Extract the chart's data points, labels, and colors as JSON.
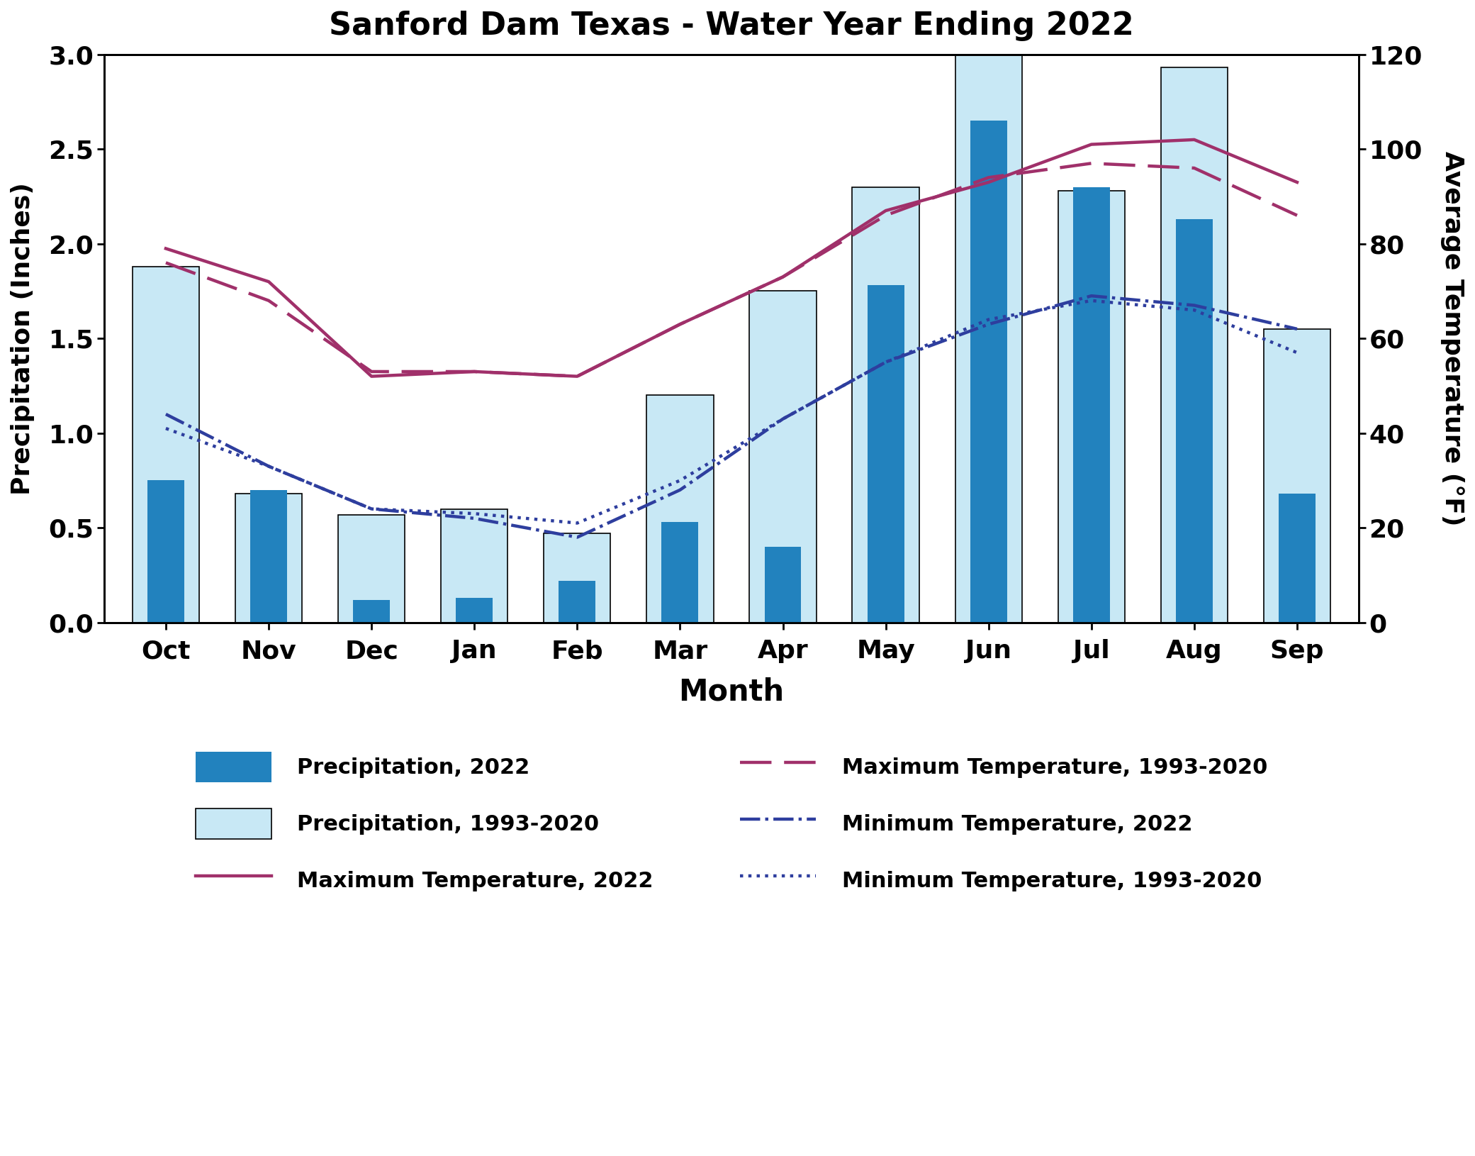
{
  "title": "Sanford Dam Texas - Water Year Ending 2022",
  "months": [
    "Oct",
    "Nov",
    "Dec",
    "Jan",
    "Feb",
    "Mar",
    "Apr",
    "May",
    "Jun",
    "Jul",
    "Aug",
    "Sep"
  ],
  "precip_2022": [
    0.75,
    0.7,
    0.12,
    0.13,
    0.22,
    0.53,
    0.4,
    1.78,
    2.65,
    2.3,
    2.13,
    0.68
  ],
  "precip_avg": [
    1.88,
    0.68,
    0.57,
    0.6,
    0.47,
    1.2,
    1.75,
    2.3,
    3.0,
    2.28,
    2.93,
    1.55
  ],
  "tmax_2022": [
    79,
    72,
    52,
    53,
    52,
    63,
    73,
    87,
    93,
    101,
    102,
    93
  ],
  "tmax_avg": [
    76,
    68,
    53,
    53,
    52,
    63,
    73,
    86,
    94,
    97,
    96,
    86
  ],
  "tmin_2022": [
    44,
    33,
    24,
    22,
    18,
    28,
    43,
    55,
    63,
    69,
    67,
    62
  ],
  "tmin_avg": [
    41,
    33,
    24,
    23,
    21,
    30,
    43,
    55,
    64,
    68,
    66,
    57
  ],
  "ylabel_left": "Precipitation (Inches)",
  "ylabel_right": "Average Temperature (°F)",
  "xlabel": "Month",
  "ylim_left": [
    0.0,
    3.0
  ],
  "ylim_right": [
    0,
    120
  ],
  "color_precip_2022": "#2282be",
  "color_precip_avg": "#c8e8f5",
  "color_tmax_2022": "#a0306a",
  "color_tmin_2022": "#2e3e9e",
  "legend_labels": [
    "Precipitation, 2022",
    "Precipitation, 1993-2020",
    "Maximum Temperature, 2022",
    "Maximum Temperature, 1993-2020",
    "Minimum Temperature, 2022",
    "Minimum Temperature, 1993-2020"
  ],
  "bar_width": 0.65
}
